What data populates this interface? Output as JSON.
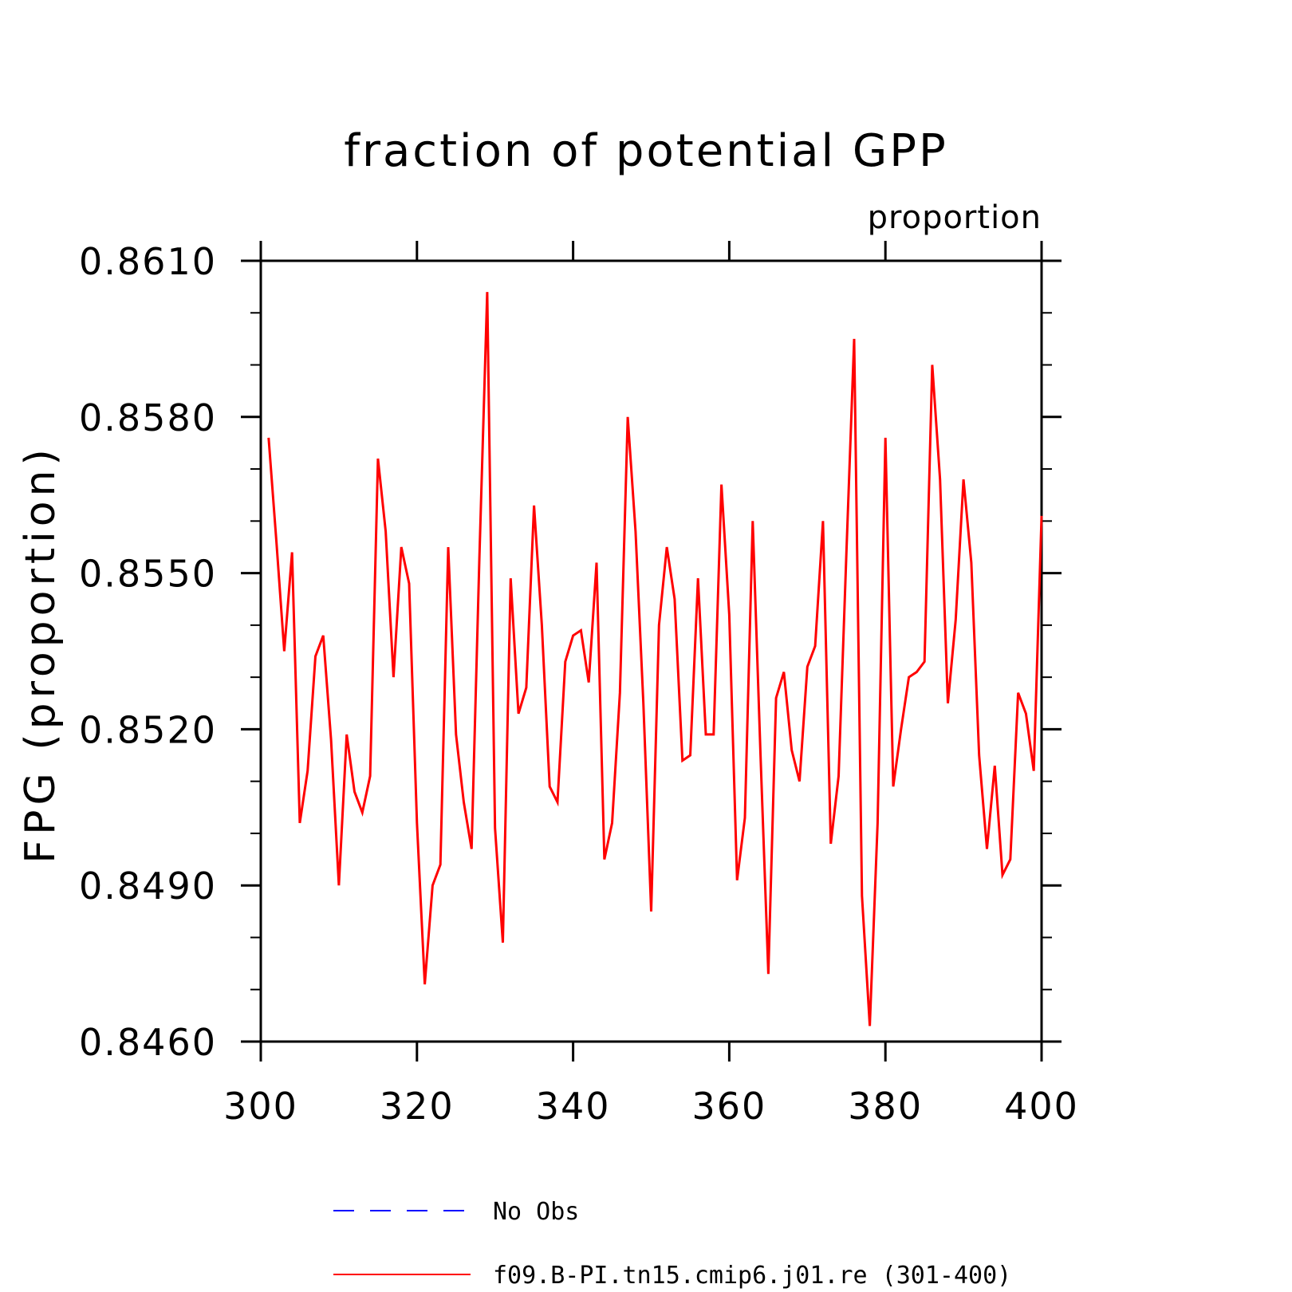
{
  "chart_data": {
    "type": "line",
    "title": "fraction of potential GPP",
    "units_label": "proportion",
    "ylabel": "FPG  (proportion)",
    "xlabel": "",
    "xlim": [
      300,
      400
    ],
    "ylim": [
      0.846,
      0.861
    ],
    "x_ticks": [
      300,
      320,
      340,
      360,
      380,
      400
    ],
    "x_tick_labels": [
      "300",
      "320",
      "340",
      "360",
      "380",
      "400"
    ],
    "y_ticks": [
      0.846,
      0.849,
      0.852,
      0.855,
      0.858,
      0.861
    ],
    "y_tick_labels": [
      "0.8460",
      "0.8490",
      "0.8520",
      "0.8550",
      "0.8580",
      "0.8610"
    ],
    "grid": false,
    "legend_position": "bottom",
    "legend": [
      {
        "label": "No Obs",
        "color": "#0000ff",
        "style": "dashed"
      },
      {
        "label": "f09.B-PI.tn15.cmip6.j01.re (301-400)",
        "color": "#ff0000",
        "style": "solid"
      }
    ],
    "series": [
      {
        "name": "f09.B-PI.tn15.cmip6.j01.re (301-400)",
        "color": "#ff0000",
        "x": [
          301,
          302,
          303,
          304,
          305,
          306,
          307,
          308,
          309,
          310,
          311,
          312,
          313,
          314,
          315,
          316,
          317,
          318,
          319,
          320,
          321,
          322,
          323,
          324,
          325,
          326,
          327,
          328,
          329,
          330,
          331,
          332,
          333,
          334,
          335,
          336,
          337,
          338,
          339,
          340,
          341,
          342,
          343,
          344,
          345,
          346,
          347,
          348,
          349,
          350,
          351,
          352,
          353,
          354,
          355,
          356,
          357,
          358,
          359,
          360,
          361,
          362,
          363,
          364,
          365,
          366,
          367,
          368,
          369,
          370,
          371,
          372,
          373,
          374,
          375,
          376,
          377,
          378,
          379,
          380,
          381,
          382,
          383,
          384,
          385,
          386,
          387,
          388,
          389,
          390,
          391,
          392,
          393,
          394,
          395,
          396,
          397,
          398,
          399,
          400
        ],
        "values": [
          0.8576,
          0.8556,
          0.8535,
          0.8554,
          0.8502,
          0.8512,
          0.8534,
          0.8538,
          0.8518,
          0.849,
          0.8519,
          0.8508,
          0.8504,
          0.8511,
          0.8572,
          0.8558,
          0.853,
          0.8555,
          0.8548,
          0.8502,
          0.8471,
          0.849,
          0.8494,
          0.8555,
          0.8519,
          0.8506,
          0.8497,
          0.8553,
          0.8604,
          0.8501,
          0.8479,
          0.8549,
          0.8523,
          0.8528,
          0.8563,
          0.854,
          0.8509,
          0.8506,
          0.8533,
          0.8538,
          0.8539,
          0.8529,
          0.8552,
          0.8495,
          0.8502,
          0.8527,
          0.858,
          0.8558,
          0.8525,
          0.8485,
          0.854,
          0.8555,
          0.8545,
          0.8514,
          0.8515,
          0.8549,
          0.8519,
          0.8519,
          0.8567,
          0.8542,
          0.8491,
          0.8503,
          0.856,
          0.8515,
          0.8473,
          0.8526,
          0.8531,
          0.8516,
          0.851,
          0.8532,
          0.8536,
          0.856,
          0.8498,
          0.8511,
          0.8554,
          0.8595,
          0.8488,
          0.8463,
          0.8502,
          0.8576,
          0.8509,
          0.852,
          0.853,
          0.8531,
          0.8533,
          0.859,
          0.8568,
          0.8525,
          0.8541,
          0.8568,
          0.8552,
          0.8515,
          0.8497,
          0.8513,
          0.8492,
          0.8495,
          0.8527,
          0.8523,
          0.8512,
          0.8561
        ]
      }
    ]
  }
}
